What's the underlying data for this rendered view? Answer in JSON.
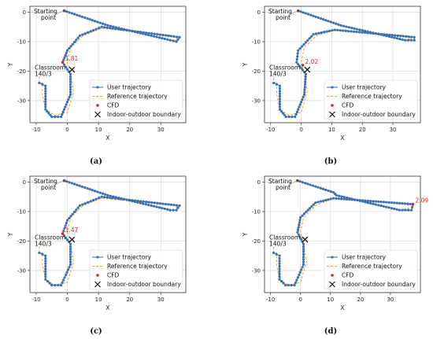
{
  "chart_data": [
    {
      "type": "line",
      "caption": "(a)",
      "xlabel": "X",
      "ylabel": "Y",
      "xlim": [
        -12,
        38
      ],
      "ylim": [
        -37.5,
        2
      ],
      "xticks": [
        -10,
        0,
        10,
        20,
        30
      ],
      "yticks": [
        0,
        -10,
        -20,
        -30
      ],
      "grid": true,
      "legend": {
        "position": "lower-right",
        "entries": [
          "User trajectory",
          "Reference trajectory",
          "CFD",
          "Indoor-outdoor boundary"
        ]
      },
      "annotations": {
        "start_label": [
          "Starting",
          "point"
        ],
        "classroom_label": [
          "Classroom",
          "140/3"
        ]
      },
      "cfd_label": "1.81",
      "cfd_point": [
        -1.5,
        -17
      ],
      "boundary": [
        1.5,
        -19.5
      ],
      "reference": [
        [
          -1,
          0.5
        ],
        [
          13,
          -4.5
        ],
        [
          33,
          -9.5
        ],
        [
          35,
          -9.5
        ],
        [
          35,
          -8
        ],
        [
          11,
          -5.5
        ],
        [
          5,
          -8
        ],
        [
          1,
          -12
        ],
        [
          0,
          -17
        ],
        [
          1,
          -21
        ],
        [
          2,
          -27
        ],
        [
          0,
          -34
        ],
        [
          -4,
          -35
        ],
        [
          -7,
          -33
        ],
        [
          -8,
          -28
        ],
        [
          -8,
          -24
        ],
        [
          -9,
          -24
        ],
        [
          -9,
          -21.5
        ]
      ],
      "user": [
        [
          -1,
          0.5
        ],
        [
          13,
          -4.5
        ],
        [
          33,
          -9.5
        ],
        [
          35,
          -10
        ],
        [
          36,
          -8.5
        ],
        [
          11,
          -5
        ],
        [
          4,
          -8
        ],
        [
          0,
          -13
        ],
        [
          -1.5,
          -17
        ],
        [
          1,
          -21
        ],
        [
          1,
          -28
        ],
        [
          -2,
          -35.5
        ],
        [
          -5,
          -35.5
        ],
        [
          -7,
          -33
        ],
        [
          -7,
          -25
        ],
        [
          -9,
          -24
        ]
      ]
    },
    {
      "type": "line",
      "caption": "(b)",
      "xlabel": "X",
      "ylabel": "Y",
      "xlim": [
        -12,
        39
      ],
      "ylim": [
        -37.5,
        2
      ],
      "xticks": [
        -10,
        0,
        10,
        20,
        30
      ],
      "yticks": [
        0,
        -10,
        -20,
        -30
      ],
      "grid": true,
      "legend": {
        "position": "lower-right",
        "entries": [
          "User trajectory",
          "Reference trajectory",
          "CFD",
          "Indoor-outdoor boundary"
        ]
      },
      "annotations": {
        "start_label": [
          "Starting",
          "point"
        ],
        "classroom_label": [
          "Classroom",
          "140/3"
        ]
      },
      "cfd_label": "2.02",
      "cfd_point": [
        0.5,
        -18
      ],
      "boundary": [
        2,
        -19.5
      ],
      "reference": [
        [
          -1,
          0.5
        ],
        [
          13,
          -4.5
        ],
        [
          33,
          -9.5
        ],
        [
          36,
          -9
        ],
        [
          35,
          -8
        ],
        [
          11,
          -6
        ],
        [
          5,
          -8
        ],
        [
          1,
          -12
        ],
        [
          0,
          -17
        ],
        [
          1,
          -21
        ],
        [
          2,
          -27
        ],
        [
          0,
          -34
        ],
        [
          -4,
          -35
        ],
        [
          -7,
          -33
        ],
        [
          -8,
          -28
        ],
        [
          -8,
          -24
        ],
        [
          -9,
          -24
        ],
        [
          -9,
          -21.5
        ]
      ],
      "user": [
        [
          -1,
          0.5
        ],
        [
          13,
          -4.5
        ],
        [
          34,
          -9.5
        ],
        [
          37,
          -9.5
        ],
        [
          37,
          -8.5
        ],
        [
          11,
          -6
        ],
        [
          4,
          -7.5
        ],
        [
          -1,
          -13
        ],
        [
          -1.5,
          -17
        ],
        [
          1.5,
          -21
        ],
        [
          1,
          -28
        ],
        [
          -2,
          -35.5
        ],
        [
          -5,
          -35.5
        ],
        [
          -7,
          -33
        ],
        [
          -7,
          -25
        ],
        [
          -9,
          -24
        ]
      ]
    },
    {
      "type": "line",
      "caption": "(c)",
      "xlabel": "X",
      "ylabel": "Y",
      "xlim": [
        -12,
        38
      ],
      "ylim": [
        -37.5,
        2
      ],
      "xticks": [
        -10,
        0,
        10,
        20,
        30
      ],
      "yticks": [
        0,
        -10,
        -20,
        -30
      ],
      "grid": true,
      "legend": {
        "position": "lower-right",
        "entries": [
          "User trajectory",
          "Reference trajectory",
          "CFD",
          "Indoor-outdoor boundary"
        ]
      },
      "annotations": {
        "start_label": [
          "Starting",
          "point"
        ],
        "classroom_label": [
          "Classroom",
          "140/3"
        ]
      },
      "cfd_label": "1.47",
      "cfd_point": [
        -1.5,
        -17.5
      ],
      "boundary": [
        1.5,
        -19.5
      ],
      "reference": [
        [
          -1,
          0.5
        ],
        [
          13,
          -4.5
        ],
        [
          33,
          -9.5
        ],
        [
          35,
          -9.5
        ],
        [
          35,
          -8
        ],
        [
          11,
          -5.5
        ],
        [
          5,
          -8
        ],
        [
          1,
          -12
        ],
        [
          0,
          -17
        ],
        [
          1,
          -21
        ],
        [
          2,
          -27
        ],
        [
          0,
          -34
        ],
        [
          -4,
          -35
        ],
        [
          -7,
          -33
        ],
        [
          -8,
          -28
        ],
        [
          -8,
          -24
        ],
        [
          -9,
          -24
        ],
        [
          -9,
          -21.5
        ]
      ],
      "user": [
        [
          -1,
          0.5
        ],
        [
          13,
          -4.5
        ],
        [
          33,
          -9.5
        ],
        [
          35,
          -9.5
        ],
        [
          36,
          -8
        ],
        [
          11,
          -5
        ],
        [
          4,
          -8
        ],
        [
          0,
          -13
        ],
        [
          -1.5,
          -17.5
        ],
        [
          1,
          -21
        ],
        [
          1,
          -28
        ],
        [
          -2,
          -35
        ],
        [
          -5,
          -35
        ],
        [
          -7,
          -33
        ],
        [
          -7,
          -25
        ],
        [
          -9,
          -24
        ]
      ]
    },
    {
      "type": "line",
      "caption": "(d)",
      "xlabel": "X",
      "ylabel": "Y",
      "xlim": [
        -12,
        40
      ],
      "ylim": [
        -37.5,
        2
      ],
      "xticks": [
        -10,
        0,
        10,
        20,
        30
      ],
      "yticks": [
        0,
        -10,
        -20,
        -30
      ],
      "grid": true,
      "legend": {
        "position": "lower-right",
        "entries": [
          "User trajectory",
          "Reference trajectory",
          "CFD",
          "Indoor-outdoor boundary"
        ]
      },
      "annotations": {
        "start_label": [
          "Starting",
          "point"
        ],
        "classroom_label": [
          "Classroom",
          "140/3"
        ]
      },
      "cfd_label": "2.09",
      "cfd_point": [
        37.5,
        -7.5
      ],
      "boundary": [
        1.5,
        -19.5
      ],
      "reference": [
        [
          -1,
          0.5
        ],
        [
          13,
          -4.5
        ],
        [
          33,
          -9.5
        ],
        [
          36,
          -9
        ],
        [
          36,
          -7.5
        ],
        [
          11,
          -5.5
        ],
        [
          5,
          -8
        ],
        [
          1,
          -12
        ],
        [
          0,
          -17
        ],
        [
          1,
          -21
        ],
        [
          2,
          -27
        ],
        [
          0,
          -34
        ],
        [
          -4,
          -35
        ],
        [
          -7,
          -33
        ],
        [
          -8,
          -28
        ],
        [
          -8,
          -24
        ],
        [
          -9,
          -24
        ],
        [
          -9,
          -21.5
        ]
      ],
      "user": [
        [
          -1,
          0.5
        ],
        [
          11,
          -3.5
        ],
        [
          12,
          -4.5
        ],
        [
          33,
          -9.5
        ],
        [
          37,
          -9.5
        ],
        [
          37.5,
          -7.5
        ],
        [
          11,
          -5.5
        ],
        [
          5,
          -7
        ],
        [
          0,
          -12
        ],
        [
          -1,
          -17
        ],
        [
          1,
          -21
        ],
        [
          1,
          -28
        ],
        [
          -2,
          -35
        ],
        [
          -5,
          -35
        ],
        [
          -7,
          -33
        ],
        [
          -7,
          -25
        ],
        [
          -9,
          -24
        ]
      ]
    }
  ]
}
